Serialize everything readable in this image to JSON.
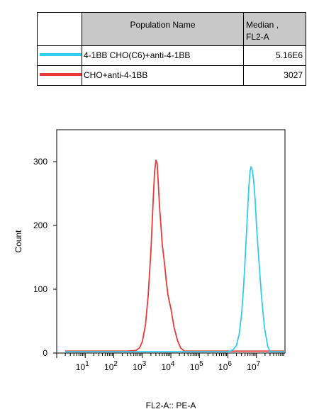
{
  "legend_table": {
    "header_population": "Population Name",
    "header_median_line1": "Median ,",
    "header_median_line2": "FL2-A",
    "rows": [
      {
        "name": "4-1BB CHO(C6)+anti-4-1BB",
        "median": "5.16E6",
        "color": "#33ccee"
      },
      {
        "name": "CHO+anti-4-1BB",
        "median": "3027",
        "color": "#e83a3a"
      }
    ]
  },
  "chart_data": {
    "type": "line",
    "title": "",
    "xlabel": "FL2-A:: PE-A",
    "ylabel": "Count",
    "x_scale": "log",
    "xlim": [
      1,
      100000000
    ],
    "ylim": [
      0,
      350
    ],
    "y_ticks": [
      0,
      100,
      200,
      300
    ],
    "x_tick_labels": [
      {
        "base": "10",
        "exp": "1",
        "value": 10
      },
      {
        "base": "10",
        "exp": "2",
        "value": 100
      },
      {
        "base": "10",
        "exp": "3",
        "value": 1000
      },
      {
        "base": "10",
        "exp": "4",
        "value": 10000
      },
      {
        "base": "10",
        "exp": "5",
        "value": 100000
      },
      {
        "base": "10",
        "exp": "6",
        "value": 1000000
      },
      {
        "base": "10",
        "exp": "7",
        "value": 10000000
      }
    ],
    "series": [
      {
        "name": "CHO+anti-4-1BB",
        "color": "#e83a3a",
        "x": [
          2,
          300,
          600,
          800,
          1000,
          1300,
          1600,
          2000,
          2400,
          2700,
          3000,
          3300,
          3600,
          4000,
          4500,
          5000,
          6000,
          7000,
          8000,
          10000,
          13000,
          17000,
          22000,
          30000,
          100000000
        ],
        "y": [
          3,
          3,
          4,
          8,
          18,
          45,
          90,
          160,
          240,
          285,
          302,
          298,
          270,
          230,
          200,
          170,
          140,
          110,
          90,
          70,
          40,
          20,
          8,
          3,
          3
        ]
      },
      {
        "name": "4-1BB CHO(C6)+anti-4-1BB",
        "color": "#33ccee",
        "x": [
          2,
          1000000,
          1500000,
          2000000,
          2500000,
          3000000,
          3500000,
          4000000,
          4500000,
          5000000,
          5500000,
          6000000,
          6500000,
          7000000,
          7500000,
          8000000,
          9000000,
          10000000,
          12000000,
          15000000,
          19000000,
          25000000,
          30000000,
          100000000
        ],
        "y": [
          2,
          2,
          5,
          12,
          30,
          60,
          100,
          145,
          190,
          230,
          265,
          285,
          292,
          288,
          280,
          270,
          240,
          200,
          150,
          90,
          40,
          10,
          2,
          2
        ]
      }
    ]
  }
}
